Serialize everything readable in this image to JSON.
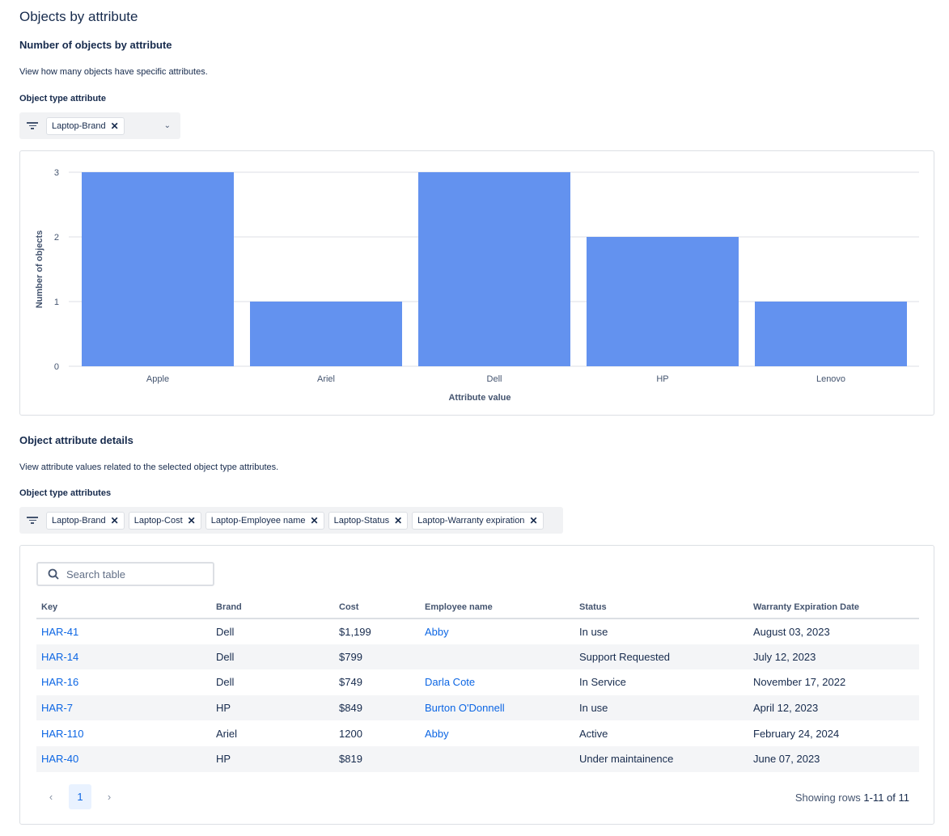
{
  "page_title": "Objects by attribute",
  "chart_section": {
    "title": "Number of objects by attribute",
    "description": "View how many objects have specific attributes.",
    "filter_label": "Object type attribute",
    "selected_tags": [
      "Laptop-Brand"
    ]
  },
  "chart_data": {
    "type": "bar",
    "categories": [
      "Apple",
      "Ariel",
      "Dell",
      "HP",
      "Lenovo"
    ],
    "values": [
      3,
      1,
      3,
      2,
      1
    ],
    "xlabel": "Attribute value",
    "ylabel": "Number of objects",
    "ylim": [
      0,
      3
    ],
    "yticks": [
      0,
      1,
      2,
      3
    ],
    "grid": true,
    "bar_color": "#6392ef"
  },
  "details_section": {
    "title": "Object attribute details",
    "description": "View attribute values related to the selected object type attributes.",
    "filter_label": "Object type attributes",
    "selected_tags": [
      "Laptop-Brand",
      "Laptop-Cost",
      "Laptop-Employee name",
      "Laptop-Status",
      "Laptop-Warranty expiration"
    ]
  },
  "table": {
    "search_placeholder": "Search table",
    "columns": [
      "Key",
      "Brand",
      "Cost",
      "Employee name",
      "Status",
      "Warranty Expiration Date"
    ],
    "rows": [
      [
        "HAR-41",
        "Dell",
        "$1,199",
        "Abby",
        "In use",
        "August 03, 2023"
      ],
      [
        "HAR-14",
        "Dell",
        "$799",
        "",
        "Support Requested",
        "July 12, 2023"
      ],
      [
        "HAR-16",
        "Dell",
        "$749",
        "Darla Cote",
        "In Service",
        "November 17, 2022"
      ],
      [
        "HAR-7",
        "HP",
        "$849",
        "Burton O'Donnell",
        "In use",
        "April 12, 2023"
      ],
      [
        "HAR-110",
        "Ariel",
        "1200",
        "Abby",
        "Active",
        "February 24, 2024"
      ],
      [
        "HAR-40",
        "HP",
        "$819",
        "",
        "Under maintainence",
        "June 07, 2023"
      ]
    ],
    "pagination": {
      "current_page": "1",
      "showing_prefix": "Showing rows",
      "showing_range": "1-11 of 11"
    }
  }
}
